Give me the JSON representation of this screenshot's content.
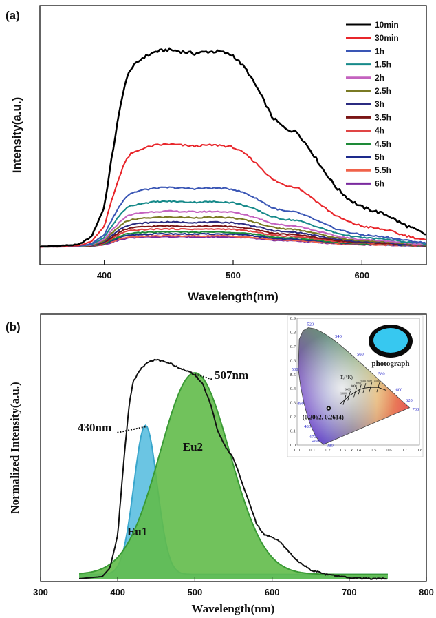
{
  "panel_a": {
    "label": "(a)",
    "chart_data": {
      "type": "line",
      "xlabel": "Wavelength(nm)",
      "ylabel": "Intensity(a.u.)",
      "xlim": [
        350,
        650
      ],
      "ylim": [
        0,
        1.08
      ],
      "x_ticks": [
        400,
        500,
        600
      ],
      "y_ticks_visible": false,
      "legend_position": "top-right",
      "profile_x": [
        350,
        380,
        390,
        400,
        405,
        410,
        415,
        420,
        430,
        440,
        450,
        460,
        470,
        480,
        490,
        500,
        510,
        520,
        530,
        540,
        550,
        560,
        570,
        580,
        590,
        600,
        610,
        620,
        630,
        640,
        650
      ],
      "profile_y": [
        0,
        0.01,
        0.05,
        0.2,
        0.42,
        0.62,
        0.8,
        0.9,
        0.96,
        0.99,
        1.0,
        0.99,
        0.98,
        0.99,
        0.99,
        0.97,
        0.9,
        0.79,
        0.66,
        0.6,
        0.58,
        0.49,
        0.39,
        0.3,
        0.24,
        0.2,
        0.18,
        0.16,
        0.12,
        0.09,
        0.06
      ],
      "series": [
        {
          "name": "10min",
          "color": "#000000",
          "peak": 1.0
        },
        {
          "name": "30min",
          "color": "#e8262b",
          "peak": 0.52
        },
        {
          "name": "1h",
          "color": "#3a56b5",
          "peak": 0.3
        },
        {
          "name": "1.5h",
          "color": "#178a8a",
          "peak": 0.23
        },
        {
          "name": "2h",
          "color": "#c462bf",
          "peak": 0.18
        },
        {
          "name": "2.5h",
          "color": "#7a7a24",
          "peak": 0.15
        },
        {
          "name": "3h",
          "color": "#2b2b80",
          "peak": 0.125
        },
        {
          "name": "3.5h",
          "color": "#7a1515",
          "peak": 0.105
        },
        {
          "name": "4h",
          "color": "#e04545",
          "peak": 0.09
        },
        {
          "name": "4.5h",
          "color": "#1e8a38",
          "peak": 0.075
        },
        {
          "name": "5h",
          "color": "#1d2a8c",
          "peak": 0.065
        },
        {
          "name": "5.5h",
          "color": "#f0624a",
          "peak": 0.055
        },
        {
          "name": "6h",
          "color": "#7a2a9e",
          "peak": 0.05
        }
      ]
    }
  },
  "panel_b": {
    "label": "(b)",
    "chart_data": {
      "type": "area",
      "xlabel": "Wavelength(nm)",
      "ylabel": "Normalized Intensity(a.u.)",
      "xlim": [
        300,
        800
      ],
      "ylim": [
        0,
        1.08
      ],
      "x_ticks": [
        300,
        400,
        500,
        600,
        700,
        800
      ],
      "measured": {
        "x": [
          350,
          380,
          390,
          400,
          405,
          410,
          415,
          420,
          430,
          440,
          450,
          460,
          470,
          480,
          490,
          500,
          510,
          520,
          530,
          540,
          550,
          560,
          570,
          580,
          590,
          600,
          610,
          620,
          630,
          650,
          670,
          700,
          730,
          750
        ],
        "y": [
          0,
          0.01,
          0.05,
          0.2,
          0.42,
          0.62,
          0.8,
          0.9,
          0.96,
          0.99,
          1.0,
          0.99,
          0.98,
          0.96,
          0.95,
          0.93,
          0.89,
          0.8,
          0.67,
          0.6,
          0.55,
          0.45,
          0.35,
          0.25,
          0.2,
          0.19,
          0.17,
          0.13,
          0.09,
          0.04,
          0.02,
          0.005,
          0,
          0
        ]
      },
      "bands": [
        {
          "name": "Eu1",
          "center": 436,
          "sigma": 15,
          "amplitude": 0.68,
          "color": "#5bbfe0",
          "edge": "#3aa6cc"
        },
        {
          "name": "Eu2",
          "center": 500,
          "sigma": 45,
          "amplitude": 0.92,
          "color": "#62bb4a",
          "edge": "#3a9a35"
        }
      ],
      "baseline": 0.02,
      "annotations": [
        {
          "text": "430nm",
          "x": 436
        },
        {
          "text": "507nm",
          "x": 500
        }
      ]
    },
    "inset": {
      "cie_x_ticks": [
        "0.0",
        "0.1",
        "0.2",
        "0.3",
        "0.4",
        "0.5",
        "0.6",
        "0.7",
        "0.8"
      ],
      "cie_y_ticks": [
        "0.0",
        "0.1",
        "0.2",
        "0.3",
        "0.4",
        "0.5",
        "0.6",
        "0.7",
        "0.8",
        "0.9"
      ],
      "axis_x": "x",
      "axis_y": "y",
      "wavelengths": [
        "380",
        "460",
        "470",
        "480",
        "490",
        "500",
        "520",
        "540",
        "560",
        "580",
        "600",
        "620",
        "700"
      ],
      "cct_label": "Tₑ(°K)",
      "cct_ticks": [
        "10000",
        "6000",
        "4000",
        "3000",
        "2500",
        "2000",
        "1500"
      ],
      "coordinate": "(0.2062, 0.2614)",
      "cie_point": [
        0.2062,
        0.2614
      ],
      "photo_label": "photograph",
      "photo_color": "#37c8f0"
    }
  }
}
